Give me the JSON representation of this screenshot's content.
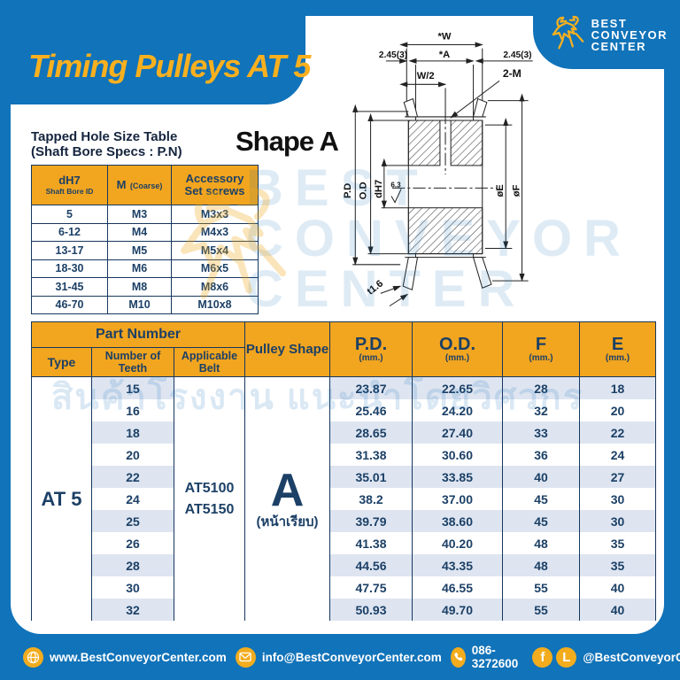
{
  "page": {
    "title": "Timing Pulleys AT 5"
  },
  "logo": {
    "line1": "BEST",
    "line2": "CONVEYOR",
    "line3": "CENTER"
  },
  "tapped_table": {
    "title_line1": "Tapped Hole Size Table",
    "title_line2": "(Shaft Bore Specs : P.N)",
    "headers": [
      {
        "main": "dH7",
        "sub": "Shaft Bore ID"
      },
      {
        "main": "M",
        "sub": "(Coarse)"
      },
      {
        "main": "Accessory",
        "sub": "Set screws"
      }
    ],
    "rows": [
      [
        "5",
        "M3",
        "M3x3"
      ],
      [
        "6-12",
        "M4",
        "M4x3"
      ],
      [
        "13-17",
        "M5",
        "M5x4"
      ],
      [
        "18-30",
        "M6",
        "M6x5"
      ],
      [
        "31-45",
        "M8",
        "M8x6"
      ],
      [
        "46-70",
        "M10",
        "M10x8"
      ]
    ]
  },
  "shape_title": "Shape A",
  "drawing": {
    "w": "*W",
    "a": "*A",
    "left_offset": "2.45(3)",
    "right_offset": "2.45(3)",
    "half": "W/2",
    "tap": "2-M",
    "pd": "P.D",
    "od": "O.D",
    "bore": "dH7",
    "rough": "6.3",
    "dia_e": "øE",
    "dia_f": "øF",
    "t": "t1.6"
  },
  "main_table": {
    "part_number_header": "Part Number",
    "col_type": "Type",
    "col_teeth": "Number of Teeth",
    "col_belt": "Applicable Belt",
    "col_shape": "Pulley Shape",
    "cols": [
      {
        "main": "P.D.",
        "sub": "(mm.)"
      },
      {
        "main": "O.D.",
        "sub": "(mm.)"
      },
      {
        "main": "F",
        "sub": "(mm.)"
      },
      {
        "main": "E",
        "sub": "(mm.)"
      }
    ],
    "type_value": "AT 5",
    "belts": [
      "AT5100",
      "AT5150"
    ],
    "shape_letter": "A",
    "shape_note": "(หน้าเรียบ)",
    "rows": [
      {
        "teeth": "15",
        "pd": "23.87",
        "od": "22.65",
        "f": "28",
        "e": "18"
      },
      {
        "teeth": "16",
        "pd": "25.46",
        "od": "24.20",
        "f": "32",
        "e": "20"
      },
      {
        "teeth": "18",
        "pd": "28.65",
        "od": "27.40",
        "f": "33",
        "e": "22"
      },
      {
        "teeth": "20",
        "pd": "31.38",
        "od": "30.60",
        "f": "36",
        "e": "24"
      },
      {
        "teeth": "22",
        "pd": "35.01",
        "od": "33.85",
        "f": "40",
        "e": "27"
      },
      {
        "teeth": "24",
        "pd": "38.2",
        "od": "37.00",
        "f": "45",
        "e": "30"
      },
      {
        "teeth": "25",
        "pd": "39.79",
        "od": "38.60",
        "f": "45",
        "e": "30"
      },
      {
        "teeth": "26",
        "pd": "41.38",
        "od": "40.20",
        "f": "48",
        "e": "35"
      },
      {
        "teeth": "28",
        "pd": "44.56",
        "od": "43.35",
        "f": "48",
        "e": "35"
      },
      {
        "teeth": "30",
        "pd": "47.75",
        "od": "46.55",
        "f": "55",
        "e": "40"
      },
      {
        "teeth": "32",
        "pd": "50.93",
        "od": "49.70",
        "f": "55",
        "e": "40"
      }
    ]
  },
  "watermark": {
    "lines": [
      "BEST",
      "CONVEYOR",
      "CENTER"
    ],
    "thai": "สินค้าโรงงาน แนะนำโดยวิศวกร"
  },
  "footer": {
    "website": "www.BestConveyorCenter.com",
    "email": "info@BestConveyorCenter.com",
    "phone": "086-3272600",
    "social": "@BestConveyorCenter",
    "facebook_glyph": "f",
    "line_glyph": "L"
  },
  "colors": {
    "blue": "#1173B9",
    "orange": "#F2A51F",
    "navy": "#1C4066",
    "stripe": "#DEE5F1",
    "title_yellow": "#F9B01E"
  }
}
